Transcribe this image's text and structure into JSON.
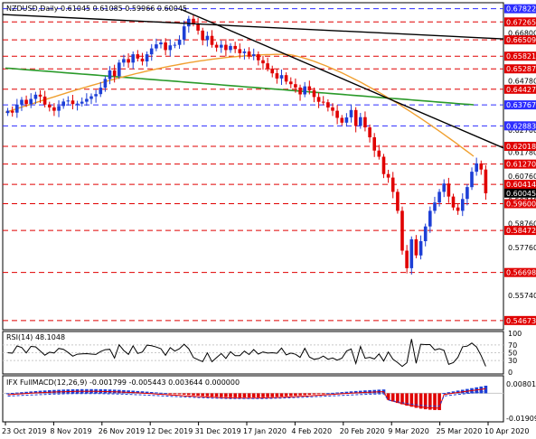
{
  "main": {
    "info_header": "NZDUSD,Daily  0.61045 0.61085 0.59966 0.60045",
    "price_ticks": [
      "0.67822",
      "0.67265",
      "0.66800",
      "0.66509",
      "0.65821",
      "0.65287",
      "0.64780",
      "0.64427",
      "0.63767",
      "0.63740",
      "0.62883",
      "0.62700",
      "0.62018",
      "0.61780",
      "0.61270",
      "0.60760",
      "0.60414",
      "0.60045",
      "0.59740",
      "0.59600",
      "0.58760",
      "0.58472",
      "0.57760",
      "0.56698",
      "0.55740",
      "0.54673"
    ],
    "level_labels": [
      {
        "text": "0.67822",
        "color": "#2d2dff"
      },
      {
        "text": "0.67265",
        "color": "#e00000"
      },
      {
        "text": "0.66509",
        "color": "#e00000"
      },
      {
        "text": "0.65821",
        "color": "#e00000"
      },
      {
        "text": "0.65287",
        "color": "#e00000"
      },
      {
        "text": "0.64427",
        "color": "#e00000"
      },
      {
        "text": "0.63767",
        "color": "#2d2dff"
      },
      {
        "text": "0.62883",
        "color": "#2d2dff"
      },
      {
        "text": "0.62018",
        "color": "#e00000"
      },
      {
        "text": "0.61270",
        "color": "#e00000"
      },
      {
        "text": "0.60414",
        "color": "#e00000"
      },
      {
        "text": "0.60045",
        "color": "#000000"
      },
      {
        "text": "0.59600",
        "color": "#e00000"
      },
      {
        "text": "0.58472",
        "color": "#e00000"
      },
      {
        "text": "0.56698",
        "color": "#e00000"
      },
      {
        "text": "0.54673",
        "color": "#e00000"
      }
    ],
    "plain_ticks": [
      "0.66800",
      "0.64780",
      "0.63740",
      "0.62700",
      "0.61780",
      "0.60760",
      "0.59740",
      "0.58760",
      "0.57760",
      "0.55740"
    ]
  },
  "rsi": {
    "label": "RSI(14) 48.1048",
    "ticks": [
      "100",
      "70",
      "50",
      "30",
      "0"
    ]
  },
  "macd": {
    "label": "IFX FullMACD(12,26,9) -0.001799 -0.005443 0.003644 0.000000",
    "ticks": [
      "0.008015",
      "-0.019098"
    ]
  },
  "time_axis": [
    "23 Oct 2019",
    "8 Nov 2019",
    "26 Nov 2019",
    "12 Dec 2019",
    "31 Dec 2019",
    "17 Jan 2020",
    "4 Feb 2020",
    "20 Feb 2020",
    "9 Mar 2020",
    "25 Mar 2020",
    "10 Apr 2020"
  ],
  "colors": {
    "bull": "#1d3fd6",
    "bear": "#e00000",
    "ma_orange": "#f0a030",
    "ma_green": "#2a9a2a",
    "trendline": "#000000",
    "level_red": "#e00000",
    "level_blue": "#2d2dff",
    "grid": "#c8c8c8"
  },
  "chart_data": {
    "type": "candlestick",
    "symbol": "NZDUSD",
    "timeframe": "Daily",
    "ohlc_last": {
      "open": 0.61045,
      "high": 0.61085,
      "low": 0.59966,
      "close": 0.60045
    },
    "ylim": [
      0.544,
      0.68
    ],
    "x_labels": [
      "23 Oct 2019",
      "8 Nov 2019",
      "26 Nov 2019",
      "12 Dec 2019",
      "31 Dec 2019",
      "17 Jan 2020",
      "4 Feb 2020",
      "20 Feb 2020",
      "9 Mar 2020",
      "25 Mar 2020",
      "10 Apr 2020"
    ],
    "horizontal_levels": [
      0.67822,
      0.67265,
      0.66509,
      0.65821,
      0.65287,
      0.64427,
      0.63767,
      0.62883,
      0.62018,
      0.6127,
      0.60414,
      0.596,
      0.58472,
      0.56698,
      0.54673
    ],
    "closes": [
      0.6352,
      0.6344,
      0.6378,
      0.6398,
      0.638,
      0.6402,
      0.642,
      0.6412,
      0.6378,
      0.6366,
      0.6352,
      0.6372,
      0.6391,
      0.6395,
      0.638,
      0.6382,
      0.639,
      0.6402,
      0.6413,
      0.6422,
      0.6449,
      0.6486,
      0.6522,
      0.6498,
      0.6555,
      0.657,
      0.6555,
      0.659,
      0.6572,
      0.656,
      0.659,
      0.6615,
      0.6632,
      0.664,
      0.6608,
      0.6628,
      0.663,
      0.6652,
      0.6708,
      0.674,
      0.672,
      0.669,
      0.665,
      0.6668,
      0.663,
      0.6618,
      0.663,
      0.6608,
      0.6625,
      0.6612,
      0.6595,
      0.6602,
      0.6582,
      0.659,
      0.6565,
      0.6552,
      0.653,
      0.651,
      0.6488,
      0.6502,
      0.6475,
      0.6464,
      0.645,
      0.6421,
      0.6455,
      0.6438,
      0.641,
      0.639,
      0.6388,
      0.6366,
      0.6352,
      0.6322,
      0.6302,
      0.6324,
      0.6355,
      0.6288,
      0.6325,
      0.6282,
      0.624,
      0.6184,
      0.6158,
      0.6085,
      0.607,
      0.601,
      0.593,
      0.5762,
      0.5688,
      0.581,
      0.5742,
      0.5802,
      0.5864,
      0.593,
      0.5965,
      0.601,
      0.6045,
      0.599,
      0.5944,
      0.593,
      0.598,
      0.603,
      0.6095,
      0.613,
      0.6104,
      0.6004
    ],
    "ma_orange": {
      "start": 0.6345,
      "peak": 0.659,
      "end": 0.616
    },
    "ma_green": {
      "start": 0.6532,
      "mid": 0.6455,
      "end": 0.6377
    },
    "trendlines": [
      {
        "from": 0.6758,
        "to": 0.6655
      },
      {
        "from": 0.678,
        "to": 0.6195
      }
    ],
    "rsi": {
      "value": 48.1048,
      "ylim": [
        0,
        100
      ],
      "levels": [
        70,
        50,
        30
      ]
    },
    "macd": {
      "histogram_last": -0.001799,
      "signal": -0.005443,
      "value3": 0.003644,
      "ylim": [
        -0.019098,
        0.008015
      ]
    }
  }
}
